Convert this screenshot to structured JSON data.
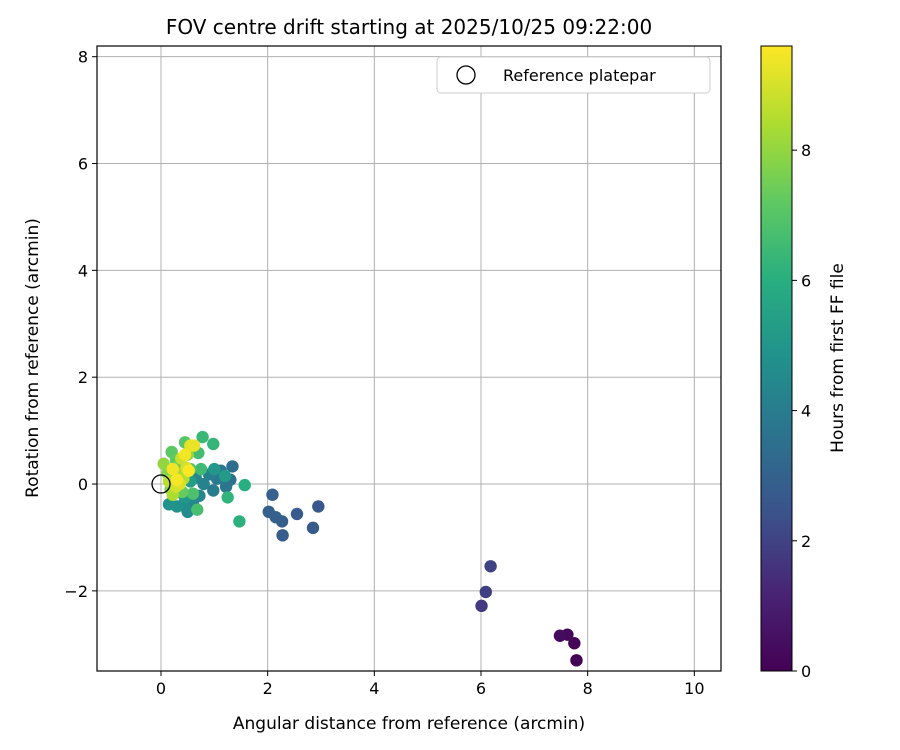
{
  "chart_data": {
    "type": "scatter",
    "title": "FOV centre drift starting at 2025/10/25 09:22:00",
    "xlabel": "Angular distance from reference (arcmin)",
    "ylabel": "Rotation from reference (arcmin)",
    "xlim": [
      -1.2,
      10.5
    ],
    "ylim": [
      -3.5,
      8.2
    ],
    "xticks": [
      0,
      2,
      4,
      6,
      8,
      10
    ],
    "yticks": [
      -2,
      0,
      2,
      4,
      6,
      8
    ],
    "xtick_labels": [
      "0",
      "2",
      "4",
      "6",
      "8",
      "10"
    ],
    "ytick_labels": [
      "−2",
      "0",
      "2",
      "4",
      "6",
      "8"
    ],
    "grid": true,
    "legend": {
      "label": "Reference platepar",
      "position": "top-right"
    },
    "reference_point": {
      "x": 0,
      "y": 0
    },
    "colorbar": {
      "label": "Hours from first FF file",
      "range": [
        0,
        9.6
      ],
      "ticks": [
        0,
        2,
        4,
        6,
        8
      ],
      "tick_labels": [
        "0",
        "2",
        "4",
        "6",
        "8"
      ],
      "colormap": "viridis"
    },
    "points": [
      {
        "x": 7.79,
        "y": -3.3,
        "c": 0.05
      },
      {
        "x": 7.75,
        "y": -2.98,
        "c": 0.15
      },
      {
        "x": 7.62,
        "y": -2.82,
        "c": 0.25
      },
      {
        "x": 7.48,
        "y": -2.84,
        "c": 0.35
      },
      {
        "x": 6.01,
        "y": -2.28,
        "c": 1.8
      },
      {
        "x": 6.09,
        "y": -2.02,
        "c": 1.9
      },
      {
        "x": 6.18,
        "y": -1.54,
        "c": 2.0
      },
      {
        "x": 2.95,
        "y": -0.42,
        "c": 2.6
      },
      {
        "x": 2.85,
        "y": -0.82,
        "c": 2.7
      },
      {
        "x": 2.55,
        "y": -0.56,
        "c": 2.75
      },
      {
        "x": 2.28,
        "y": -0.96,
        "c": 2.8
      },
      {
        "x": 2.27,
        "y": -0.7,
        "c": 2.85
      },
      {
        "x": 2.15,
        "y": -0.62,
        "c": 2.9
      },
      {
        "x": 2.02,
        "y": -0.52,
        "c": 2.95
      },
      {
        "x": 2.09,
        "y": -0.2,
        "c": 3.0
      },
      {
        "x": 1.34,
        "y": 0.33,
        "c": 3.4
      },
      {
        "x": 1.3,
        "y": 0.08,
        "c": 3.6
      },
      {
        "x": 1.22,
        "y": -0.05,
        "c": 3.7
      },
      {
        "x": 1.12,
        "y": 0.25,
        "c": 3.8
      },
      {
        "x": 1.05,
        "y": 0.1,
        "c": 3.9
      },
      {
        "x": 0.98,
        "y": -0.12,
        "c": 4.0
      },
      {
        "x": 0.9,
        "y": 0.18,
        "c": 4.1
      },
      {
        "x": 0.8,
        "y": 0.0,
        "c": 4.2
      },
      {
        "x": 0.72,
        "y": -0.22,
        "c": 4.3
      },
      {
        "x": 0.65,
        "y": 0.12,
        "c": 4.4
      },
      {
        "x": 0.6,
        "y": -0.35,
        "c": 4.5
      },
      {
        "x": 0.5,
        "y": -0.52,
        "c": 4.6
      },
      {
        "x": 0.4,
        "y": -0.4,
        "c": 4.7
      },
      {
        "x": 0.3,
        "y": -0.42,
        "c": 4.8
      },
      {
        "x": 0.15,
        "y": -0.38,
        "c": 4.9
      },
      {
        "x": 0.45,
        "y": -0.25,
        "c": 5.0
      },
      {
        "x": 1.0,
        "y": 0.28,
        "c": 5.1
      },
      {
        "x": 1.2,
        "y": 0.15,
        "c": 5.2
      },
      {
        "x": 0.55,
        "y": 0.05,
        "c": 5.3
      },
      {
        "x": 0.35,
        "y": -0.15,
        "c": 5.4
      },
      {
        "x": 1.57,
        "y": -0.02,
        "c": 6.0
      },
      {
        "x": 1.47,
        "y": -0.7,
        "c": 6.1
      },
      {
        "x": 1.25,
        "y": -0.25,
        "c": 6.2
      },
      {
        "x": 0.98,
        "y": 0.75,
        "c": 6.3
      },
      {
        "x": 0.78,
        "y": 0.88,
        "c": 6.4
      },
      {
        "x": 0.75,
        "y": 0.28,
        "c": 6.5
      },
      {
        "x": 0.7,
        "y": 0.58,
        "c": 6.6
      },
      {
        "x": 0.68,
        "y": -0.48,
        "c": 6.7
      },
      {
        "x": 0.6,
        "y": -0.18,
        "c": 6.8
      },
      {
        "x": 0.55,
        "y": 0.28,
        "c": 6.9
      },
      {
        "x": 0.45,
        "y": 0.78,
        "c": 7.0
      },
      {
        "x": 0.2,
        "y": 0.6,
        "c": 7.1
      },
      {
        "x": 0.28,
        "y": 0.45,
        "c": 7.2
      },
      {
        "x": 0.4,
        "y": -0.15,
        "c": 7.3
      },
      {
        "x": 0.25,
        "y": 0.1,
        "c": 7.4
      },
      {
        "x": 0.35,
        "y": 0.35,
        "c": 7.6
      },
      {
        "x": 0.18,
        "y": -0.1,
        "c": 7.7
      },
      {
        "x": 0.12,
        "y": 0.2,
        "c": 7.8
      },
      {
        "x": 0.05,
        "y": 0.38,
        "c": 8.0
      },
      {
        "x": 0.5,
        "y": 0.55,
        "c": 8.1
      },
      {
        "x": 0.3,
        "y": 0.2,
        "c": 8.3
      },
      {
        "x": 0.22,
        "y": -0.2,
        "c": 8.4
      },
      {
        "x": 0.42,
        "y": 0.1,
        "c": 8.5
      },
      {
        "x": 0.15,
        "y": 0.05,
        "c": 8.6
      },
      {
        "x": 0.38,
        "y": 0.48,
        "c": 8.8
      },
      {
        "x": 0.28,
        "y": -0.05,
        "c": 8.9
      },
      {
        "x": 0.48,
        "y": 0.3,
        "c": 9.0
      },
      {
        "x": 0.35,
        "y": 0.0,
        "c": 9.1
      },
      {
        "x": 0.55,
        "y": 0.72,
        "c": 9.2
      },
      {
        "x": 0.62,
        "y": 0.72,
        "c": 9.3
      },
      {
        "x": 0.22,
        "y": 0.28,
        "c": 9.4
      },
      {
        "x": 0.45,
        "y": 0.55,
        "c": 9.45
      },
      {
        "x": 0.3,
        "y": 0.08,
        "c": 9.5
      },
      {
        "x": 0.52,
        "y": 0.25,
        "c": 9.55
      }
    ]
  }
}
